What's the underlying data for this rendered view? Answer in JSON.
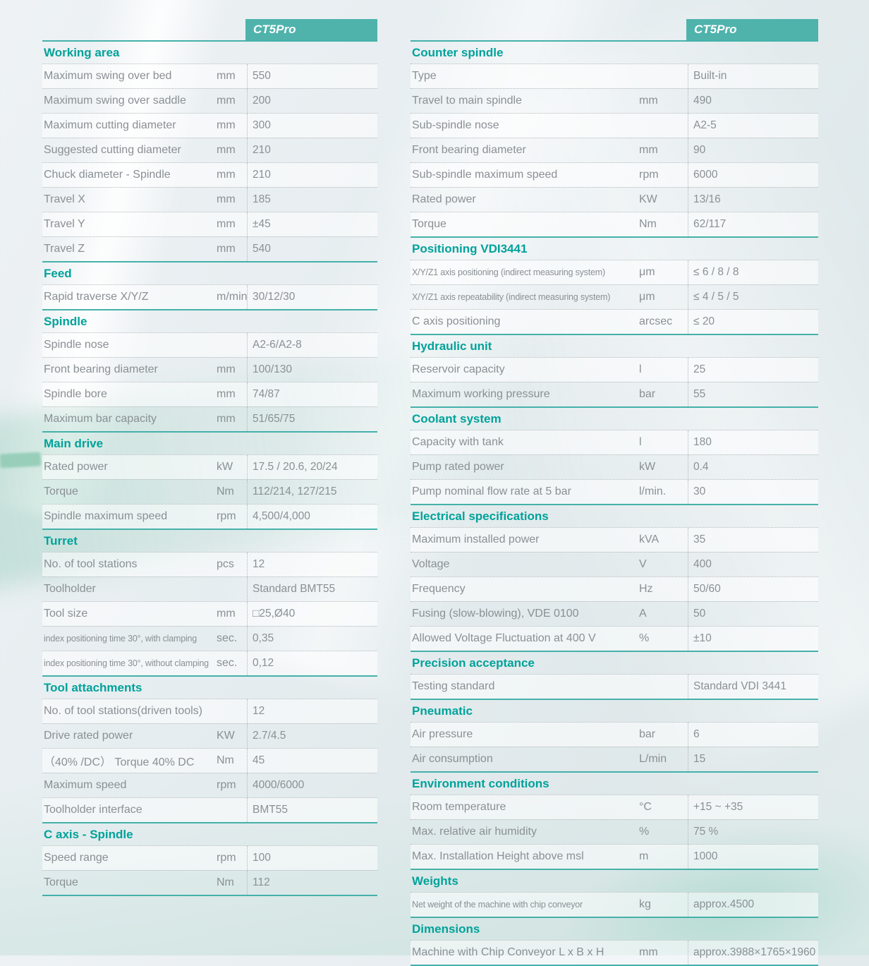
{
  "product": "CT5Pro",
  "colors": {
    "accent_teal_box": "#4fb3ac",
    "accent_teal_title": "#00a29a",
    "section_rule": "#45b1aa",
    "text_gray": "#8a9094",
    "dotted_line": "#b2b8ba"
  },
  "left_column": {
    "sections": [
      {
        "title": "Working area",
        "rows": [
          {
            "label": "Maximum swing over bed",
            "unit": "mm",
            "value": "550"
          },
          {
            "label": "Maximum swing over saddle",
            "unit": "mm",
            "value": "200"
          },
          {
            "label": "Maximum cutting diameter",
            "unit": "mm",
            "value": "300"
          },
          {
            "label": "Suggested cutting diameter",
            "unit": "mm",
            "value": "210"
          },
          {
            "label": "Chuck diameter - Spindle",
            "unit": "mm",
            "value": "210"
          },
          {
            "label": "Travel X",
            "unit": "mm",
            "value": "185"
          },
          {
            "label": "Travel Y",
            "unit": "mm",
            "value": "±45"
          },
          {
            "label": "Travel Z",
            "unit": "mm",
            "value": "540"
          }
        ]
      },
      {
        "title": "Feed",
        "rows": [
          {
            "label": "Rapid traverse X/Y/Z",
            "unit": "m/min",
            "value": "30/12/30"
          }
        ]
      },
      {
        "title": "Spindle",
        "rows": [
          {
            "label": "Spindle nose",
            "unit": "",
            "value": "A2-6/A2-8"
          },
          {
            "label": "Front bearing diameter",
            "unit": "mm",
            "value": "100/130"
          },
          {
            "label": "Spindle bore",
            "unit": "mm",
            "value": "74/87"
          },
          {
            "label": "Maximum bar capacity",
            "unit": "mm",
            "value": "51/65/75"
          }
        ]
      },
      {
        "title": "Main drive",
        "rows": [
          {
            "label": "Rated power",
            "unit": "kW",
            "value": "17.5 / 20.6, 20/24"
          },
          {
            "label": "Torque",
            "unit": "Nm",
            "value": "112/214, 127/215"
          },
          {
            "label": "Spindle maximum speed",
            "unit": "rpm",
            "value": "4,500/4,000"
          }
        ]
      },
      {
        "title": "Turret",
        "rows": [
          {
            "label": "No. of tool stations",
            "unit": "pcs",
            "value": "12"
          },
          {
            "label": "Toolholder",
            "unit": "",
            "value": "Standard BMT55"
          },
          {
            "label": "Tool size",
            "unit": "mm",
            "value": "□25,Ø40"
          },
          {
            "label": "index positioning time 30°, with clamping",
            "unit": "sec.",
            "value": "0,35",
            "small": true
          },
          {
            "label": "index positioning time 30°, without clamping",
            "unit": "sec.",
            "value": "0,12",
            "small": true
          }
        ]
      },
      {
        "title": "Tool attachments",
        "rows": [
          {
            "label": "No. of tool stations(driven tools)",
            "unit": "",
            "value": "12"
          },
          {
            "label": "Drive rated power",
            "unit": "KW",
            "value": "2.7/4.5"
          },
          {
            "label": "（40% /DC） Torque 40% DC",
            "unit": "Nm",
            "value": "45"
          },
          {
            "label": "Maximum speed",
            "unit": "rpm",
            "value": "4000/6000"
          },
          {
            "label": "Toolholder interface",
            "unit": "",
            "value": "BMT55"
          }
        ]
      },
      {
        "title": "C axis - Spindle",
        "rows": [
          {
            "label": "Speed range",
            "unit": "rpm",
            "value": "100"
          },
          {
            "label": "Torque",
            "unit": "Nm",
            "value": "112"
          }
        ]
      }
    ]
  },
  "right_column": {
    "sections": [
      {
        "title": "Counter spindle",
        "rows": [
          {
            "label": "Type",
            "unit": "",
            "value": "Built-in"
          },
          {
            "label": "Travel to main spindle",
            "unit": "mm",
            "value": "490"
          },
          {
            "label": "Sub-spindle nose",
            "unit": "",
            "value": "A2-5"
          },
          {
            "label": "Front bearing diameter",
            "unit": "mm",
            "value": "90"
          },
          {
            "label": "Sub-spindle maximum speed",
            "unit": "rpm",
            "value": "6000"
          },
          {
            "label": "Rated power",
            "unit": "KW",
            "value": "13/16"
          },
          {
            "label": "Torque",
            "unit": "Nm",
            "value": "62/117"
          }
        ]
      },
      {
        "title": "Positioning VDI3441",
        "rows": [
          {
            "label": "X/Y/Z1 axis positioning (indirect measuring system)",
            "unit": "μm",
            "value": "≤ 6 / 8 / 8",
            "small": true
          },
          {
            "label": "X/Y/Z1 axis repeatability (indirect measuring system)",
            "unit": "μm",
            "value": "≤ 4 / 5 / 5",
            "small": true
          },
          {
            "label": "C axis positioning",
            "unit": "arcsec",
            "value": "≤ 20"
          }
        ]
      },
      {
        "title": "Hydraulic unit",
        "rows": [
          {
            "label": "Reservoir capacity",
            "unit": "l",
            "value": "25"
          },
          {
            "label": "Maximum working pressure",
            "unit": "bar",
            "value": "55"
          }
        ]
      },
      {
        "title": "Coolant system",
        "rows": [
          {
            "label": "Capacity with tank",
            "unit": "l",
            "value": "180"
          },
          {
            "label": "Pump rated power",
            "unit": "kW",
            "value": "0.4"
          },
          {
            "label": "Pump nominal flow rate at 5 bar",
            "unit": "l/min.",
            "value": "30"
          }
        ]
      },
      {
        "title": "Electrical specifications",
        "rows": [
          {
            "label": "Maximum installed power",
            "unit": "kVA",
            "value": "35"
          },
          {
            "label": "Voltage",
            "unit": "V",
            "value": "400"
          },
          {
            "label": "Frequency",
            "unit": "Hz",
            "value": "50/60"
          },
          {
            "label": "Fusing (slow-blowing), VDE 0100",
            "unit": "A",
            "value": "50"
          },
          {
            "label": "Allowed Voltage Fluctuation at 400 V",
            "unit": "%",
            "value": "±10"
          }
        ]
      },
      {
        "title": "Precision acceptance",
        "rows": [
          {
            "label": "Testing standard",
            "unit": "",
            "value": "Standard VDI 3441"
          }
        ]
      },
      {
        "title": "Pneumatic",
        "rows": [
          {
            "label": "Air pressure",
            "unit": "bar",
            "value": "6"
          },
          {
            "label": "Air consumption",
            "unit": "L/min",
            "value": "15"
          }
        ]
      },
      {
        "title": "Environment conditions",
        "rows": [
          {
            "label": "Room temperature",
            "unit": "°C",
            "value": "+15 ~ +35"
          },
          {
            "label": "Max. relative air humidity",
            "unit": "%",
            "value": "75 %"
          },
          {
            "label": "Max. Installation Height above msl",
            "unit": "m",
            "value": "1000"
          }
        ]
      },
      {
        "title": "Weights",
        "rows": [
          {
            "label": "Net weight of the machine with chip conveyor",
            "unit": "kg",
            "value": "approx.4500",
            "small": true
          }
        ]
      },
      {
        "title": "Dimensions",
        "rows": [
          {
            "label": "Machine with Chip Conveyor L x B x H",
            "unit": "mm",
            "value": "approx.3988×1765×1960"
          }
        ]
      }
    ]
  }
}
